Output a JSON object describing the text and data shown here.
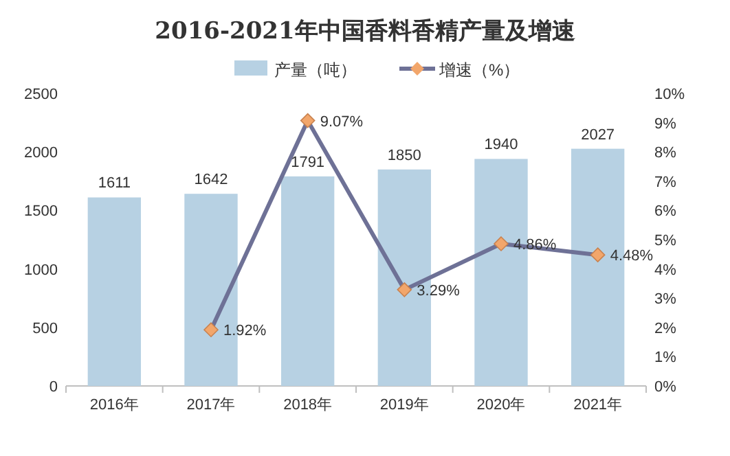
{
  "chart_data": {
    "type": "bar",
    "title": "2016-2021年中国香料香精产量及增速",
    "categories": [
      "2016年",
      "2017年",
      "2018年",
      "2019年",
      "2020年",
      "2021年"
    ],
    "series": [
      {
        "name": "产量（吨）",
        "color": "#b7d1e3",
        "values": [
          1611,
          1642,
          1791,
          1850,
          1940,
          2027
        ],
        "value_labels": [
          "1611",
          "1642",
          "1791",
          "1850",
          "1940",
          "2027"
        ]
      },
      {
        "name": "增速（%）",
        "type": "line",
        "axis": "y2",
        "color": "#6e7196",
        "colors": [
          null,
          "#f2a66b",
          "#f2a66b",
          "#f2a66b",
          "#f2a66b",
          "#f2a66b"
        ],
        "marker": "diamond",
        "values": [
          null,
          1.92,
          9.07,
          3.29,
          4.86,
          4.48
        ],
        "value_labels": [
          null,
          "1.92%",
          "9.07%",
          "3.29%",
          "4.86%",
          "4.48%"
        ]
      }
    ],
    "ylim": [
      0,
      2500
    ],
    "yticks": [
      0,
      500,
      1000,
      1500,
      2000,
      2500
    ],
    "y2lim": [
      0,
      10
    ],
    "y2ticks": [
      {
        "value": 0,
        "label": "0%"
      },
      {
        "value": 1,
        "label": "1%"
      },
      {
        "value": 2,
        "label": "2%"
      },
      {
        "value": 3,
        "label": "3%"
      },
      {
        "value": 4,
        "label": "4%"
      },
      {
        "value": 5,
        "label": "5%"
      },
      {
        "value": 6,
        "label": "6%"
      },
      {
        "value": 7,
        "label": "7%"
      },
      {
        "value": 8,
        "label": "8%"
      },
      {
        "value": 9,
        "label": "9%"
      },
      {
        "value": 10,
        "label": "10%"
      }
    ],
    "legend": "top",
    "grid": false
  }
}
